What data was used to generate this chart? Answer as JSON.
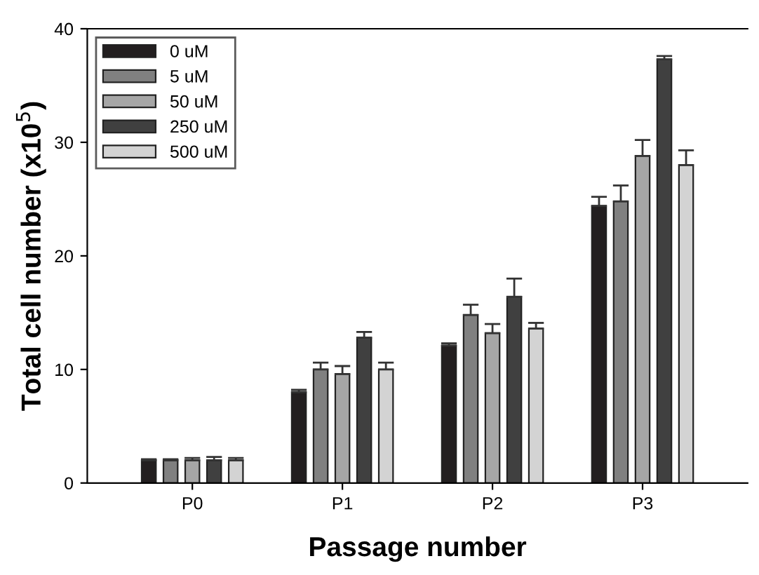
{
  "chart_data": {
    "type": "bar",
    "xlabel": "Passage number",
    "ylabel": "Total cell number (x10$^{5}$)",
    "categories": [
      "P0",
      "P1",
      "P2",
      "P3"
    ],
    "series": [
      {
        "name": "0 uM",
        "color": "#231f20",
        "values": [
          2.0,
          8.0,
          12.1,
          24.4
        ],
        "errors": [
          0.1,
          0.2,
          0.2,
          0.8
        ]
      },
      {
        "name": "5 uM",
        "color": "#808080",
        "values": [
          2.0,
          10.0,
          14.8,
          24.8
        ],
        "errors": [
          0.1,
          0.6,
          0.9,
          1.4
        ]
      },
      {
        "name": "50 uM",
        "color": "#a6a6a6",
        "values": [
          2.0,
          9.6,
          13.2,
          28.8
        ],
        "errors": [
          0.2,
          0.7,
          0.8,
          1.4
        ]
      },
      {
        "name": "250 uM",
        "color": "#404040",
        "values": [
          2.0,
          12.8,
          16.4,
          37.3
        ],
        "errors": [
          0.3,
          0.5,
          1.6,
          0.3
        ]
      },
      {
        "name": "500 uM",
        "color": "#d3d3d3",
        "values": [
          2.0,
          10.0,
          13.6,
          28.0
        ],
        "errors": [
          0.2,
          0.6,
          0.5,
          1.3
        ]
      }
    ],
    "ylim": [
      0,
      40
    ],
    "yticks": [
      0,
      10,
      20,
      30,
      40
    ],
    "legend": "top left",
    "grid": false
  }
}
